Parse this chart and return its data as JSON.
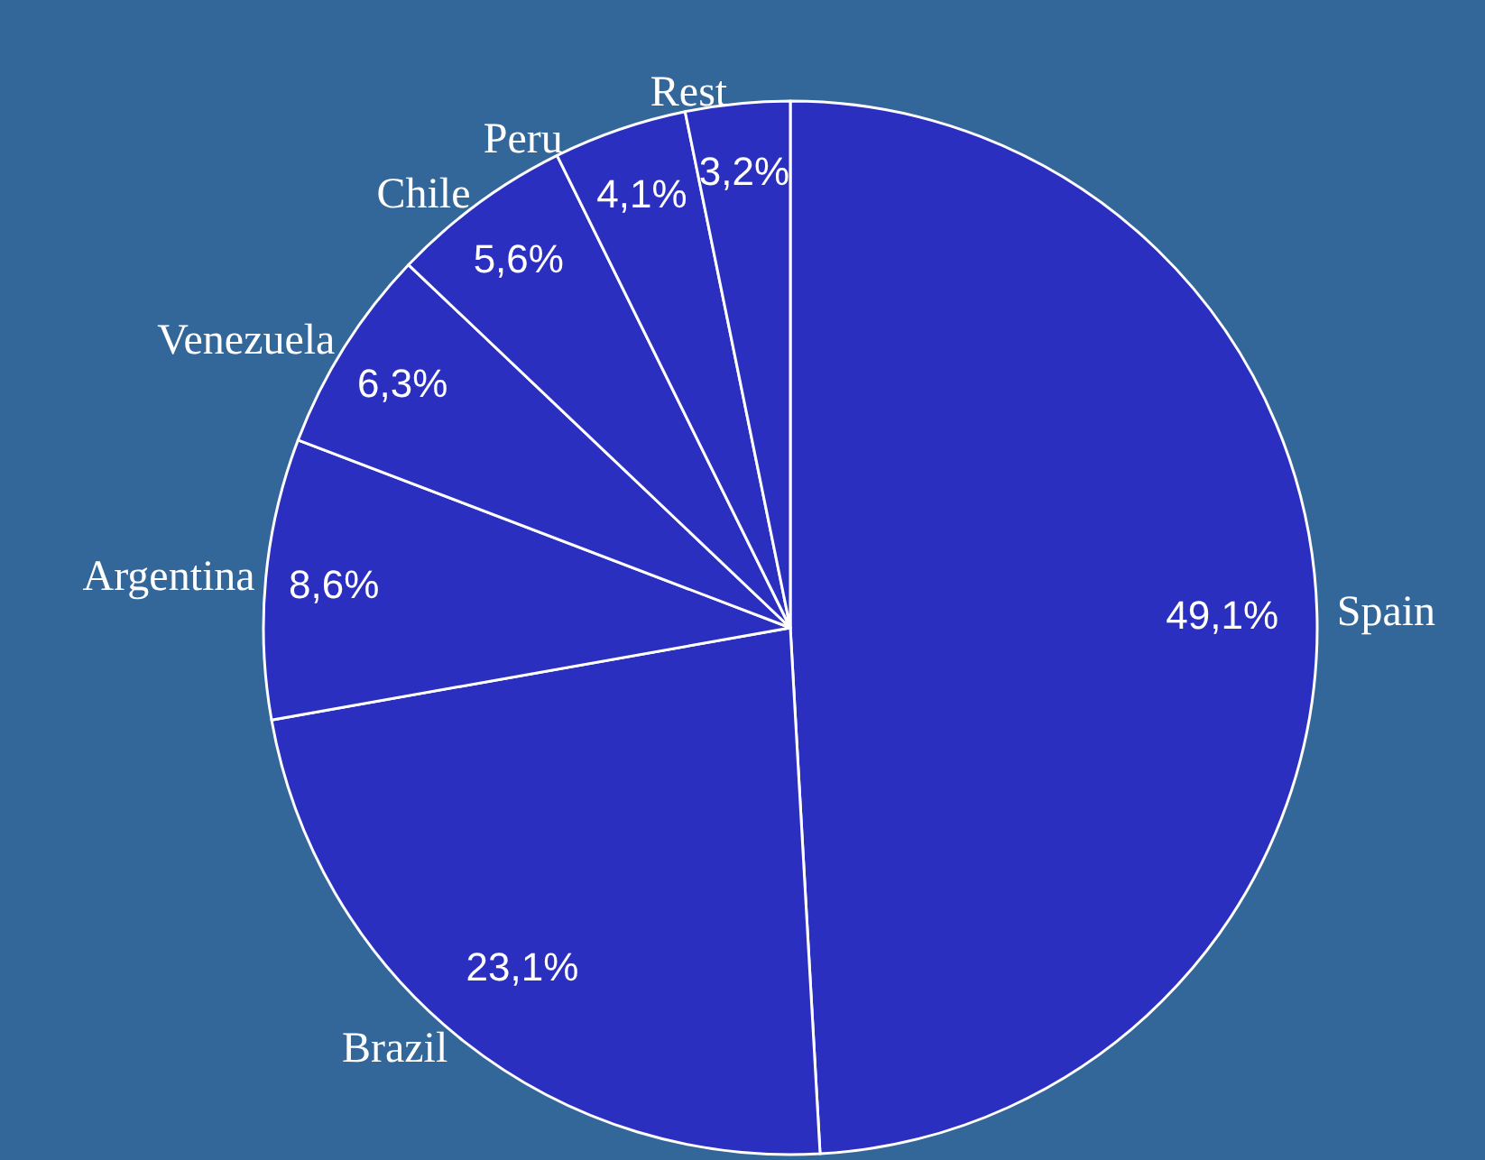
{
  "chart_data": {
    "type": "pie",
    "categories": [
      "Spain",
      "Brazil",
      "Argentina",
      "Venezuela",
      "Chile",
      "Peru",
      "Rest"
    ],
    "values": [
      49.1,
      23.1,
      8.6,
      6.3,
      5.6,
      4.1,
      3.2
    ],
    "value_labels": [
      "49,1%",
      "23,1%",
      "8,6%",
      "6,3%",
      "5,6%",
      "4,1%",
      "3,2%"
    ],
    "colors": [
      "#2b2fbf",
      "#2b2fbf",
      "#2b2fbf",
      "#2b2fbf",
      "#2b2fbf",
      "#2b2fbf",
      "#2b2fbf"
    ],
    "legend": false
  }
}
